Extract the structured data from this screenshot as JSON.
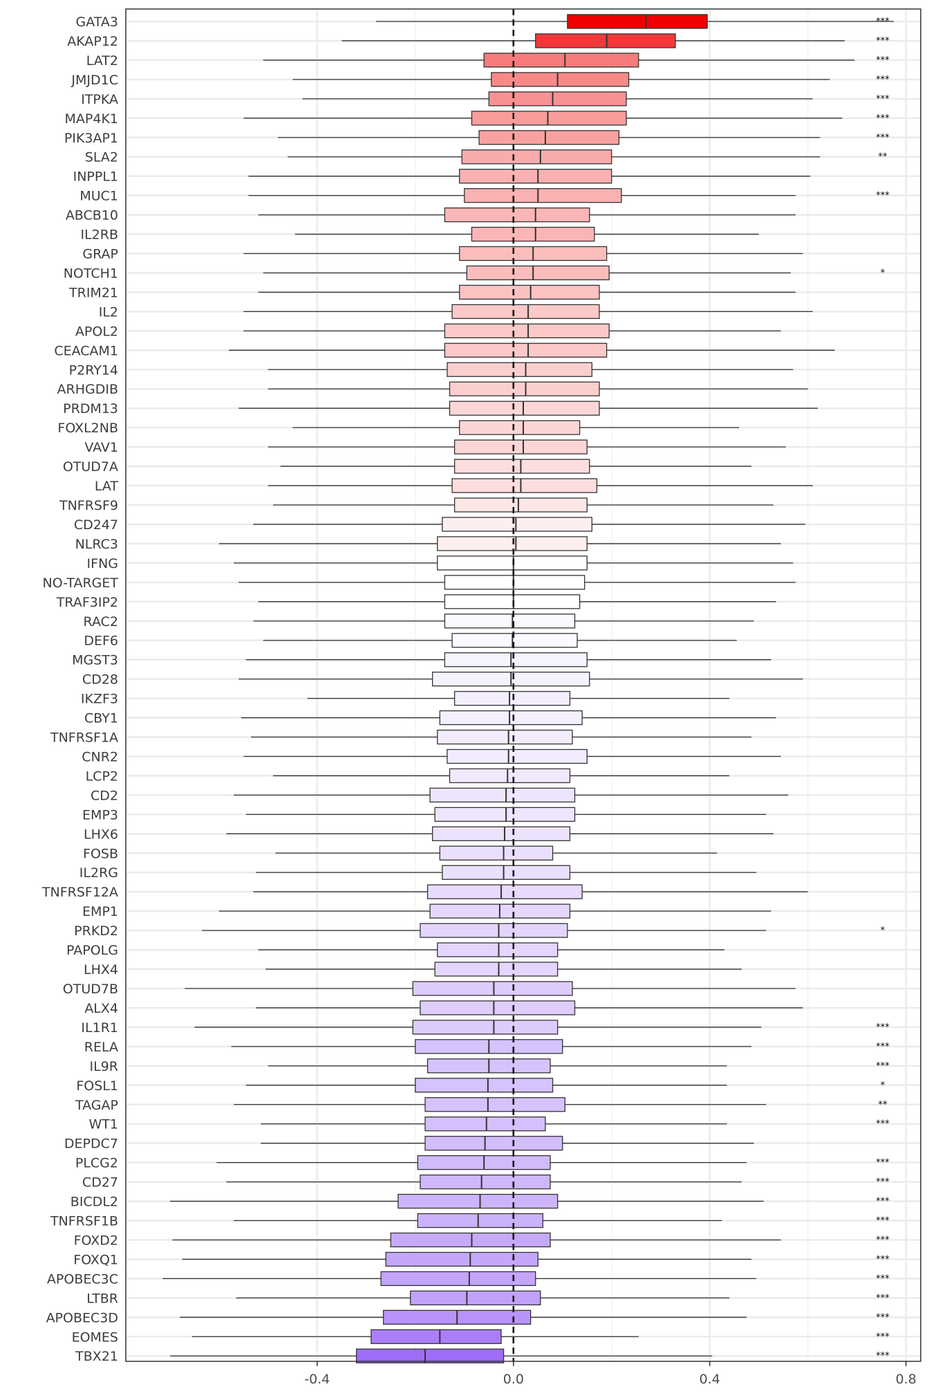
{
  "chart_data": {
    "type": "boxplot",
    "orientation": "horizontal",
    "xlim": [
      -0.79,
      0.83
    ],
    "xticks": [
      {
        "value": -0.4,
        "label": "-0.4"
      },
      {
        "value": 0.0,
        "label": "0.0"
      },
      {
        "value": 0.4,
        "label": "0.4"
      },
      {
        "value": 0.8,
        "label": "0.8"
      }
    ],
    "reference_line": {
      "x": 0.0,
      "style": "dashed"
    },
    "grid": true,
    "fill_scale": {
      "low": "#9e6df7",
      "mid": "#ffffff",
      "high": "#ef0000"
    },
    "categories": [
      {
        "name": "GATA3",
        "min": -0.28,
        "q1": 0.11,
        "median": 0.27,
        "q3": 0.395,
        "max": 0.775,
        "sig": "***"
      },
      {
        "name": "AKAP12",
        "min": -0.35,
        "q1": 0.045,
        "median": 0.19,
        "q3": 0.33,
        "max": 0.675,
        "sig": "***"
      },
      {
        "name": "LAT2",
        "min": -0.51,
        "q1": -0.06,
        "median": 0.105,
        "q3": 0.255,
        "max": 0.695,
        "sig": "***"
      },
      {
        "name": "JMJD1C",
        "min": -0.45,
        "q1": -0.045,
        "median": 0.09,
        "q3": 0.235,
        "max": 0.645,
        "sig": "***"
      },
      {
        "name": "ITPKA",
        "min": -0.43,
        "q1": -0.05,
        "median": 0.08,
        "q3": 0.23,
        "max": 0.61,
        "sig": "***"
      },
      {
        "name": "MAP4K1",
        "min": -0.55,
        "q1": -0.085,
        "median": 0.07,
        "q3": 0.23,
        "max": 0.67,
        "sig": "***"
      },
      {
        "name": "PIK3AP1",
        "min": -0.48,
        "q1": -0.07,
        "median": 0.065,
        "q3": 0.215,
        "max": 0.625,
        "sig": "***"
      },
      {
        "name": "SLA2",
        "min": -0.46,
        "q1": -0.105,
        "median": 0.055,
        "q3": 0.2,
        "max": 0.625,
        "sig": "**"
      },
      {
        "name": "INPPL1",
        "min": -0.54,
        "q1": -0.11,
        "median": 0.05,
        "q3": 0.2,
        "max": 0.605,
        "sig": ""
      },
      {
        "name": "MUC1",
        "min": -0.54,
        "q1": -0.1,
        "median": 0.05,
        "q3": 0.22,
        "max": 0.575,
        "sig": "***"
      },
      {
        "name": "ABCB10",
        "min": -0.52,
        "q1": -0.14,
        "median": 0.045,
        "q3": 0.155,
        "max": 0.575,
        "sig": ""
      },
      {
        "name": "IL2RB",
        "min": -0.445,
        "q1": -0.085,
        "median": 0.045,
        "q3": 0.165,
        "max": 0.5,
        "sig": ""
      },
      {
        "name": "GRAP",
        "min": -0.55,
        "q1": -0.11,
        "median": 0.04,
        "q3": 0.19,
        "max": 0.59,
        "sig": ""
      },
      {
        "name": "NOTCH1",
        "min": -0.51,
        "q1": -0.095,
        "median": 0.04,
        "q3": 0.195,
        "max": 0.565,
        "sig": "*"
      },
      {
        "name": "TRIM21",
        "min": -0.52,
        "q1": -0.11,
        "median": 0.035,
        "q3": 0.175,
        "max": 0.575,
        "sig": ""
      },
      {
        "name": "IL2",
        "min": -0.55,
        "q1": -0.125,
        "median": 0.03,
        "q3": 0.175,
        "max": 0.61,
        "sig": ""
      },
      {
        "name": "APOL2",
        "min": -0.55,
        "q1": -0.14,
        "median": 0.03,
        "q3": 0.195,
        "max": 0.545,
        "sig": ""
      },
      {
        "name": "CEACAM1",
        "min": -0.58,
        "q1": -0.14,
        "median": 0.03,
        "q3": 0.19,
        "max": 0.655,
        "sig": ""
      },
      {
        "name": "P2RY14",
        "min": -0.5,
        "q1": -0.135,
        "median": 0.025,
        "q3": 0.16,
        "max": 0.57,
        "sig": ""
      },
      {
        "name": "ARHGDIB",
        "min": -0.5,
        "q1": -0.13,
        "median": 0.025,
        "q3": 0.175,
        "max": 0.6,
        "sig": ""
      },
      {
        "name": "PRDM13",
        "min": -0.56,
        "q1": -0.13,
        "median": 0.02,
        "q3": 0.175,
        "max": 0.62,
        "sig": ""
      },
      {
        "name": "FOXL2NB",
        "min": -0.45,
        "q1": -0.11,
        "median": 0.02,
        "q3": 0.135,
        "max": 0.46,
        "sig": ""
      },
      {
        "name": "VAV1",
        "min": -0.5,
        "q1": -0.12,
        "median": 0.02,
        "q3": 0.15,
        "max": 0.555,
        "sig": ""
      },
      {
        "name": "OTUD7A",
        "min": -0.475,
        "q1": -0.12,
        "median": 0.015,
        "q3": 0.155,
        "max": 0.485,
        "sig": ""
      },
      {
        "name": "LAT",
        "min": -0.5,
        "q1": -0.125,
        "median": 0.015,
        "q3": 0.17,
        "max": 0.61,
        "sig": ""
      },
      {
        "name": "TNFRSF9",
        "min": -0.49,
        "q1": -0.12,
        "median": 0.01,
        "q3": 0.15,
        "max": 0.53,
        "sig": ""
      },
      {
        "name": "CD247",
        "min": -0.53,
        "q1": -0.145,
        "median": 0.005,
        "q3": 0.16,
        "max": 0.595,
        "sig": ""
      },
      {
        "name": "NLRC3",
        "min": -0.6,
        "q1": -0.155,
        "median": 0.005,
        "q3": 0.15,
        "max": 0.545,
        "sig": ""
      },
      {
        "name": "IFNG",
        "min": -0.57,
        "q1": -0.155,
        "median": 0.0,
        "q3": 0.15,
        "max": 0.57,
        "sig": ""
      },
      {
        "name": "NO-TARGET",
        "min": -0.56,
        "q1": -0.14,
        "median": 0.0,
        "q3": 0.145,
        "max": 0.575,
        "sig": ""
      },
      {
        "name": "TRAF3IP2",
        "min": -0.52,
        "q1": -0.14,
        "median": 0.0,
        "q3": 0.135,
        "max": 0.535,
        "sig": ""
      },
      {
        "name": "RAC2",
        "min": -0.53,
        "q1": -0.14,
        "median": -0.002,
        "q3": 0.125,
        "max": 0.49,
        "sig": ""
      },
      {
        "name": "DEF6",
        "min": -0.51,
        "q1": -0.125,
        "median": -0.002,
        "q3": 0.13,
        "max": 0.455,
        "sig": ""
      },
      {
        "name": "MGST3",
        "min": -0.545,
        "q1": -0.14,
        "median": -0.005,
        "q3": 0.15,
        "max": 0.525,
        "sig": ""
      },
      {
        "name": "CD28",
        "min": -0.56,
        "q1": -0.165,
        "median": -0.005,
        "q3": 0.155,
        "max": 0.59,
        "sig": ""
      },
      {
        "name": "IKZF3",
        "min": -0.42,
        "q1": -0.12,
        "median": -0.008,
        "q3": 0.115,
        "max": 0.44,
        "sig": ""
      },
      {
        "name": "CBY1",
        "min": -0.555,
        "q1": -0.15,
        "median": -0.008,
        "q3": 0.14,
        "max": 0.535,
        "sig": ""
      },
      {
        "name": "TNFRSF1A",
        "min": -0.535,
        "q1": -0.155,
        "median": -0.01,
        "q3": 0.12,
        "max": 0.485,
        "sig": ""
      },
      {
        "name": "CNR2",
        "min": -0.55,
        "q1": -0.135,
        "median": -0.01,
        "q3": 0.15,
        "max": 0.545,
        "sig": ""
      },
      {
        "name": "LCP2",
        "min": -0.49,
        "q1": -0.13,
        "median": -0.012,
        "q3": 0.115,
        "max": 0.44,
        "sig": ""
      },
      {
        "name": "CD2",
        "min": -0.57,
        "q1": -0.17,
        "median": -0.015,
        "q3": 0.125,
        "max": 0.56,
        "sig": ""
      },
      {
        "name": "EMP3",
        "min": -0.545,
        "q1": -0.16,
        "median": -0.015,
        "q3": 0.125,
        "max": 0.515,
        "sig": ""
      },
      {
        "name": "LHX6",
        "min": -0.585,
        "q1": -0.165,
        "median": -0.018,
        "q3": 0.115,
        "max": 0.53,
        "sig": ""
      },
      {
        "name": "FOSB",
        "min": -0.485,
        "q1": -0.15,
        "median": -0.02,
        "q3": 0.08,
        "max": 0.415,
        "sig": ""
      },
      {
        "name": "IL2RG",
        "min": -0.525,
        "q1": -0.145,
        "median": -0.02,
        "q3": 0.115,
        "max": 0.495,
        "sig": ""
      },
      {
        "name": "TNFRSF12A",
        "min": -0.53,
        "q1": -0.175,
        "median": -0.025,
        "q3": 0.14,
        "max": 0.6,
        "sig": ""
      },
      {
        "name": "EMP1",
        "min": -0.6,
        "q1": -0.17,
        "median": -0.028,
        "q3": 0.115,
        "max": 0.525,
        "sig": ""
      },
      {
        "name": "PRKD2",
        "min": -0.635,
        "q1": -0.19,
        "median": -0.03,
        "q3": 0.11,
        "max": 0.515,
        "sig": "*"
      },
      {
        "name": "PAPOLG",
        "min": -0.52,
        "q1": -0.155,
        "median": -0.03,
        "q3": 0.09,
        "max": 0.43,
        "sig": ""
      },
      {
        "name": "LHX4",
        "min": -0.505,
        "q1": -0.16,
        "median": -0.03,
        "q3": 0.09,
        "max": 0.465,
        "sig": ""
      },
      {
        "name": "OTUD7B",
        "min": -0.67,
        "q1": -0.205,
        "median": -0.04,
        "q3": 0.12,
        "max": 0.575,
        "sig": ""
      },
      {
        "name": "ALX4",
        "min": -0.525,
        "q1": -0.19,
        "median": -0.04,
        "q3": 0.125,
        "max": 0.59,
        "sig": ""
      },
      {
        "name": "IL1R1",
        "min": -0.65,
        "q1": -0.205,
        "median": -0.04,
        "q3": 0.09,
        "max": 0.505,
        "sig": "***"
      },
      {
        "name": "RELA",
        "min": -0.575,
        "q1": -0.2,
        "median": -0.05,
        "q3": 0.1,
        "max": 0.485,
        "sig": "***"
      },
      {
        "name": "IL9R",
        "min": -0.5,
        "q1": -0.175,
        "median": -0.05,
        "q3": 0.075,
        "max": 0.435,
        "sig": "***"
      },
      {
        "name": "FOSL1",
        "min": -0.545,
        "q1": -0.2,
        "median": -0.052,
        "q3": 0.08,
        "max": 0.435,
        "sig": "*"
      },
      {
        "name": "TAGAP",
        "min": -0.57,
        "q1": -0.18,
        "median": -0.052,
        "q3": 0.105,
        "max": 0.515,
        "sig": "**"
      },
      {
        "name": "WT1",
        "min": -0.515,
        "q1": -0.18,
        "median": -0.055,
        "q3": 0.065,
        "max": 0.435,
        "sig": "***"
      },
      {
        "name": "DEPDC7",
        "min": -0.515,
        "q1": -0.18,
        "median": -0.058,
        "q3": 0.1,
        "max": 0.49,
        "sig": ""
      },
      {
        "name": "PLCG2",
        "min": -0.605,
        "q1": -0.195,
        "median": -0.06,
        "q3": 0.075,
        "max": 0.475,
        "sig": "***"
      },
      {
        "name": "CD27",
        "min": -0.585,
        "q1": -0.19,
        "median": -0.065,
        "q3": 0.075,
        "max": 0.465,
        "sig": "***"
      },
      {
        "name": "BICDL2",
        "min": -0.7,
        "q1": -0.235,
        "median": -0.068,
        "q3": 0.09,
        "max": 0.51,
        "sig": "***"
      },
      {
        "name": "TNFRSF1B",
        "min": -0.57,
        "q1": -0.195,
        "median": -0.072,
        "q3": 0.06,
        "max": 0.425,
        "sig": "***"
      },
      {
        "name": "FOXD2",
        "min": -0.695,
        "q1": -0.25,
        "median": -0.085,
        "q3": 0.075,
        "max": 0.545,
        "sig": "***"
      },
      {
        "name": "FOXQ1",
        "min": -0.675,
        "q1": -0.26,
        "median": -0.088,
        "q3": 0.05,
        "max": 0.485,
        "sig": "***"
      },
      {
        "name": "APOBEC3C",
        "min": -0.715,
        "q1": -0.27,
        "median": -0.09,
        "q3": 0.045,
        "max": 0.495,
        "sig": "***"
      },
      {
        "name": "LTBR",
        "min": -0.565,
        "q1": -0.21,
        "median": -0.095,
        "q3": 0.055,
        "max": 0.44,
        "sig": "***"
      },
      {
        "name": "APOBEC3D",
        "min": -0.68,
        "q1": -0.265,
        "median": -0.115,
        "q3": 0.035,
        "max": 0.475,
        "sig": "***"
      },
      {
        "name": "EOMES",
        "min": -0.655,
        "q1": -0.29,
        "median": -0.15,
        "q3": -0.025,
        "max": 0.255,
        "sig": "***"
      },
      {
        "name": "TBX21",
        "min": -0.7,
        "q1": -0.32,
        "median": -0.18,
        "q3": -0.02,
        "max": 0.405,
        "sig": "***"
      }
    ]
  }
}
